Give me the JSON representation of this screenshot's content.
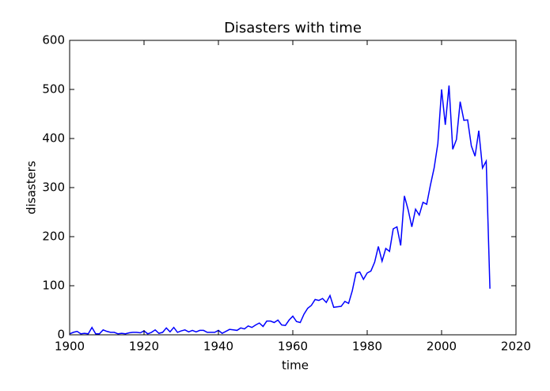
{
  "chart_data": {
    "type": "line",
    "title": "Disasters with time",
    "xlabel": "time",
    "ylabel": "disasters",
    "x": [
      1900,
      1901,
      1902,
      1903,
      1904,
      1905,
      1906,
      1907,
      1908,
      1909,
      1910,
      1911,
      1912,
      1913,
      1914,
      1915,
      1916,
      1917,
      1918,
      1919,
      1920,
      1921,
      1922,
      1923,
      1924,
      1925,
      1926,
      1927,
      1928,
      1929,
      1930,
      1931,
      1932,
      1933,
      1934,
      1935,
      1936,
      1937,
      1938,
      1939,
      1940,
      1941,
      1942,
      1943,
      1944,
      1945,
      1946,
      1947,
      1948,
      1949,
      1950,
      1951,
      1952,
      1953,
      1954,
      1955,
      1956,
      1957,
      1958,
      1959,
      1960,
      1961,
      1962,
      1963,
      1964,
      1965,
      1966,
      1967,
      1968,
      1969,
      1970,
      1971,
      1972,
      1973,
      1974,
      1975,
      1976,
      1977,
      1978,
      1979,
      1980,
      1981,
      1982,
      1983,
      1984,
      1985,
      1986,
      1987,
      1988,
      1989,
      1990,
      1991,
      1992,
      1993,
      1994,
      1995,
      1996,
      1997,
      1998,
      1999,
      2000,
      2001,
      2002,
      2003,
      2004,
      2005,
      2006,
      2007,
      2008,
      2009,
      2010,
      2011,
      2012,
      2013
    ],
    "series": [
      {
        "color": "#0000ff",
        "values": [
          2,
          5,
          7,
          2,
          3,
          2,
          15,
          2,
          2,
          10,
          7,
          5,
          5,
          2,
          3,
          2,
          4,
          5,
          5,
          4,
          8,
          2,
          5,
          10,
          3,
          5,
          14,
          6,
          15,
          5,
          8,
          10,
          6,
          9,
          6,
          9,
          9,
          5,
          5,
          5,
          9,
          3,
          7,
          11,
          10,
          9,
          14,
          12,
          18,
          15,
          20,
          24,
          17,
          28,
          28,
          25,
          30,
          20,
          19,
          30,
          38,
          27,
          25,
          42,
          54,
          60,
          72,
          70,
          74,
          66,
          80,
          56,
          57,
          58,
          68,
          64,
          90,
          126,
          128,
          113,
          126,
          130,
          148,
          180,
          150,
          176,
          170,
          216,
          220,
          182,
          283,
          255,
          220,
          256,
          244,
          270,
          266,
          305,
          340,
          390,
          500,
          428,
          508,
          378,
          398,
          475,
          437,
          438,
          385,
          364,
          416,
          340,
          354,
          94
        ]
      }
    ],
    "xlim": [
      1900,
      2020
    ],
    "xticks": [
      1900,
      1920,
      1940,
      1960,
      1980,
      2000,
      2020
    ],
    "ylim": [
      0,
      600
    ],
    "yticks": [
      0,
      100,
      200,
      300,
      400,
      500,
      600
    ]
  }
}
